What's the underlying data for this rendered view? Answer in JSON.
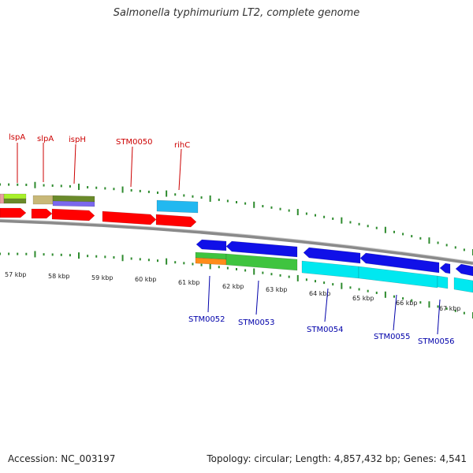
{
  "title": "Salmonella typhimurium LT2, complete genome",
  "footer": {
    "accession": "Accession: NC_003197",
    "topology": "Topology: circular; Length: 4,857,432 bp; Genes: 4,541"
  },
  "colors": {
    "backbone": "#8a8a8a",
    "tick": "#2e8b2e",
    "top_label": "#cc0000",
    "bottom_label": "#0000aa",
    "red": "#ff0000",
    "sky": "#22b8f0",
    "blue": "#1010e8",
    "green": "#3fc43f",
    "cyan": "#00e8f0",
    "orange": "#ff8c1a",
    "lime": "#a8f02a",
    "olive": "#6a8a2a",
    "khaki": "#c8b878",
    "lavender": "#7b68ee",
    "pink": "#e8a0a0"
  },
  "tick_labels": [
    "57 kbp",
    "58 kbp",
    "59 kbp",
    "60 kbp",
    "61 kbp",
    "62 kbp",
    "63 kbp",
    "64 kbp",
    "65 kbp",
    "66 kbp",
    "67 kbp"
  ],
  "top_genes": [
    "lspA",
    "slpA",
    "ispH",
    "STM0050",
    "rihC"
  ],
  "bottom_genes": [
    "STM0052",
    "STM0053",
    "STM0054",
    "STM0055",
    "STM0056"
  ]
}
